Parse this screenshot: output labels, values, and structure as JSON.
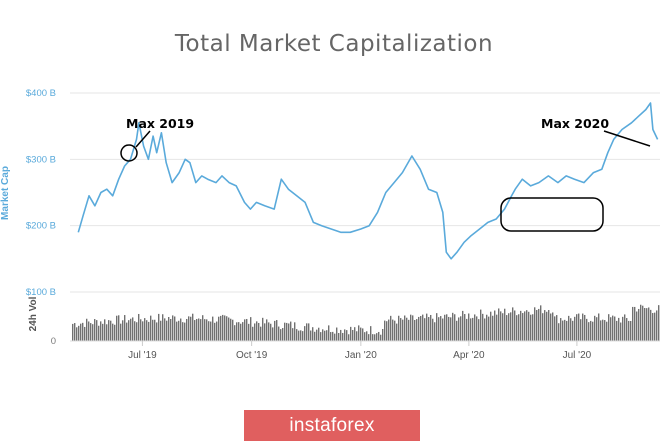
{
  "chart_data": {
    "type": "line",
    "title": "Total Market Capitalization",
    "ylabel": "Market Cap",
    "ylim": [
      100,
      400
    ],
    "y_ticks": [
      "$400 B",
      "$300 B",
      "$200 B",
      "$100 B"
    ],
    "x_ticks": [
      "Jul '19",
      "Oct '19",
      "Jan '20",
      "Apr '20",
      "Jul '20"
    ],
    "volume_label": "24h Vol",
    "volume_ticks": [
      "0"
    ],
    "series": [
      {
        "color": "#5aaadb",
        "x": [
          "2019-05-08",
          "2019-05-12",
          "2019-05-17",
          "2019-05-22",
          "2019-05-27",
          "2019-06-01",
          "2019-06-06",
          "2019-06-11",
          "2019-06-16",
          "2019-06-21",
          "2019-06-26",
          "2019-06-28",
          "2019-07-02",
          "2019-07-06",
          "2019-07-10",
          "2019-07-13",
          "2019-07-17",
          "2019-07-21",
          "2019-07-26",
          "2019-08-01",
          "2019-08-06",
          "2019-08-10",
          "2019-08-15",
          "2019-08-20",
          "2019-08-25",
          "2019-09-01",
          "2019-09-06",
          "2019-09-12",
          "2019-09-18",
          "2019-09-25",
          "2019-09-30",
          "2019-10-05",
          "2019-10-12",
          "2019-10-20",
          "2019-10-26",
          "2019-11-01",
          "2019-11-08",
          "2019-11-15",
          "2019-11-22",
          "2019-11-29",
          "2019-12-07",
          "2019-12-15",
          "2019-12-23",
          "2020-01-01",
          "2020-01-08",
          "2020-01-15",
          "2020-01-22",
          "2020-01-29",
          "2020-02-05",
          "2020-02-13",
          "2020-02-20",
          "2020-02-27",
          "2020-03-05",
          "2020-03-10",
          "2020-03-13",
          "2020-03-17",
          "2020-03-22",
          "2020-03-28",
          "2020-04-03",
          "2020-04-10",
          "2020-04-17",
          "2020-04-24",
          "2020-05-01",
          "2020-05-07",
          "2020-05-10",
          "2020-05-16",
          "2020-05-23",
          "2020-05-30",
          "2020-06-07",
          "2020-06-15",
          "2020-06-22",
          "2020-06-29",
          "2020-07-07",
          "2020-07-15",
          "2020-07-22",
          "2020-07-27",
          "2020-08-01",
          "2020-08-08",
          "2020-08-16",
          "2020-08-22",
          "2020-08-28",
          "2020-09-01",
          "2020-09-03",
          "2020-09-07"
        ],
        "values": [
          190,
          215,
          245,
          230,
          250,
          255,
          245,
          270,
          290,
          300,
          330,
          355,
          320,
          300,
          335,
          310,
          340,
          295,
          265,
          280,
          300,
          295,
          265,
          275,
          270,
          265,
          275,
          265,
          260,
          235,
          225,
          235,
          230,
          225,
          270,
          255,
          245,
          235,
          205,
          200,
          195,
          190,
          190,
          195,
          200,
          220,
          250,
          265,
          280,
          305,
          285,
          255,
          250,
          220,
          160,
          150,
          160,
          175,
          185,
          195,
          205,
          210,
          225,
          245,
          255,
          270,
          260,
          265,
          275,
          265,
          275,
          270,
          265,
          280,
          285,
          310,
          330,
          345,
          355,
          365,
          375,
          385,
          345,
          330
        ]
      }
    ],
    "annotations": [
      "Max 2019",
      "Max 2020"
    ]
  },
  "watermark": "instaforex"
}
